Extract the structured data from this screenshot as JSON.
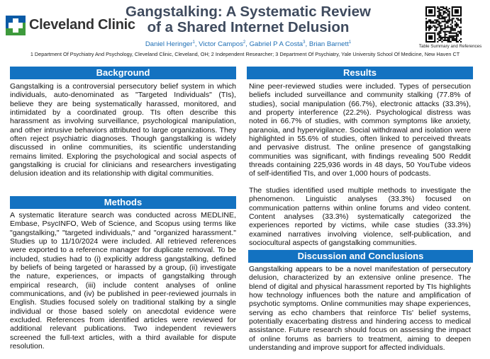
{
  "header": {
    "logo_text": "Cleveland Clinic",
    "title_line1": "Gangstalking: A Systematic Review",
    "title_line2": "of a Shared Internet Delusion",
    "authors": [
      {
        "name": "Daniel Heringer",
        "aff": "1"
      },
      {
        "name": "Victor Campos",
        "aff": "2"
      },
      {
        "name": "Gabriel P A Costa",
        "aff": "3"
      },
      {
        "name": "Brian Barnett",
        "aff": "1"
      }
    ],
    "affiliations": "1 Department Of Psychiatry And Psychology, Cleveland Clinic, Cleveland, OH;  2 Independent Researcher;  3 Department Of Psychiatry, Yale University School Of Medicine, New Haven CT",
    "qr_caption": "Table Summary and References"
  },
  "colors": {
    "accent": "#1372c1",
    "title": "#3f4b5e",
    "authors": "#1f6fb5",
    "logo_blue": "#0a5aa6",
    "logo_green": "#3e9a3c"
  },
  "sections": {
    "background": {
      "heading": "Background",
      "text": "Gangstalking is a controversial persecutory belief system in which individuals, auto-denominated as \"Targeted Individuals\" (TIs), believe they are being systematically harassed, monitored, and intimidated by a coordinated group. TIs often describe this harassment as involving surveillance, psychological manipulation, and other intrusive behaviors attributed to large organizations. They often reject psychiatric diagnoses. Though gangstalking is widely discussed in online communities, its scientific understanding remains limited. Exploring the psychological and social aspects of gangstalking is crucial for clinicians and researchers investigating delusion ideation and its relationship with digital communities."
    },
    "methods": {
      "heading": "Methods",
      "text": "A systematic literature search was conducted across MEDLINE, Embase, PsycINFO, Web of Science, and Scopus using terms like \"gangstalking,\" \"targeted individuals,\" and \"organized harassment.\" Studies up to 11/10/2024 were included. All retrieved references were exported to a reference manager for duplicate removal. To be included, studies had to (i) explicitly address gangstalking, defined by beliefs of being targeted or harassed by a group, (ii) investigate the nature, experiences, or impacts of gangstalking through empirical research, (iii) include content analyses of online communications, and (iv) be published in peer-reviewed journals in English. Studies focused solely on traditional stalking by a single individual or those based solely on anecdotal evidence were excluded. References from identified articles were reviewed for additional relevant publications. Two independent reviewers screened the full-text articles, with a third available for dispute resolution."
    },
    "results": {
      "heading": "Results",
      "text1": "Nine peer-reviewed studies were included. Types of persecution beliefs included surveillance and community stalking (77.8% of studies), social manipulation (66.7%), electronic attacks (33.3%), and property interference (22.2%). Psychological distress was noted in 66.7% of studies, with common symptoms like anxiety, paranoia, and hypervigilance. Social withdrawal and isolation were highlighted in 55.6% of studies, often linked to perceived threats and pervasive distrust. The online presence of gangstalking communities was significant, with findings revealing 500 Reddit threads containing 225,936 words in 48 days, 50 YouTube videos of self-identified TIs, and over 1,000 hours of podcasts.",
      "text2": "The studies identified used multiple methods to investigate the phenomenon. Linguistic analyses (33.3%) focused on communication patterns within online forums and video content. Content analyses (33.3%) systematically categorized the experiences reported by victims, while case studies (33.3%) examined narratives involving violence, self-publication, and sociocultural aspects of gangstalking communities."
    },
    "discussion": {
      "heading": "Discussion and Conclusions",
      "text": "Gangstalking appears to be a novel manifestation of persecutory delusion, characterized by an extensive online presence. The blend of digital and physical harassment reported by TIs highlights how technology influences both the nature and amplification of psychotic symptoms. Online communities may shape experiences, serving as echo chambers that reinforce TIs' belief systems, potentially exacerbating distress and hindering access to medical assistance. Future research should focus on assessing the impact of online forums as barriers to treatment, aiming to deepen understanding and improve support for affected individuals."
    }
  }
}
